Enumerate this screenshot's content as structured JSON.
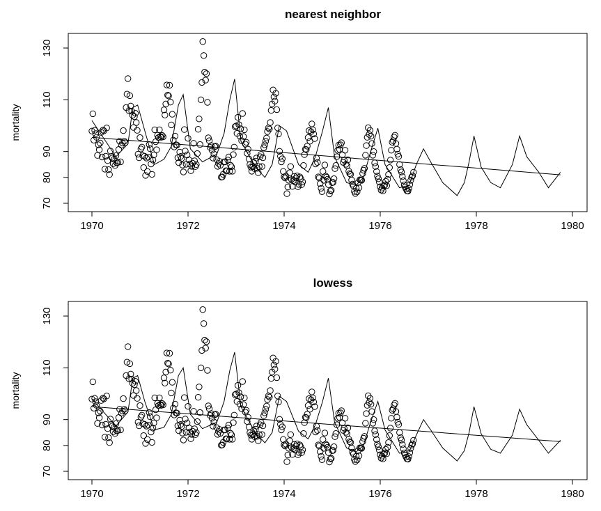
{
  "chart_data": [
    {
      "type": "scatter",
      "title": "nearest neighbor",
      "xlabel": "",
      "ylabel": "mortality",
      "xlim": [
        1970,
        1980
      ],
      "ylim": [
        70,
        130
      ],
      "xticks": [
        "1970",
        "1972",
        "1974",
        "1976",
        "1978",
        "1980"
      ],
      "yticks": [
        "70",
        "80",
        "90",
        "110",
        "130"
      ],
      "grid": false,
      "series": [
        {
          "kind": "points",
          "marker": "open-circle",
          "x_start": 1970.0,
          "x_step": 0.01923,
          "values": [
            97.9,
            104.6,
            94.4,
            98.2,
            96.9,
            95.5,
            88.5,
            92.6,
            90.7,
            93.3,
            97.4,
            87.9,
            98.3,
            98.0,
            83.2,
            88.2,
            99.1,
            86.5,
            83.0,
            81.1,
            90.2,
            88.1,
            87.5,
            85.3,
            87.0,
            84.6,
            88.4,
            85.6,
            85.8,
            90.8,
            94.0,
            86.0,
            92.5,
            93.3,
            98.1,
            94.0,
            93.4,
            107.0,
            112.2,
            118.2,
            105.8,
            111.6,
            107.6,
            105.6,
            104.0,
            99.3,
            103.5,
            104.8,
            101.2,
            98.2,
            89.0,
            87.6,
            95.4,
            91.0,
            91.7,
            88.4,
            83.8,
            88.2,
            80.8,
            87.5,
            82.3,
            87.8,
            92.7,
            91.1,
            85.2,
            81.2,
            86.7,
            88.7,
            98.4,
            93.8,
            90.7,
            96.3,
            95.4,
            98.4,
            95.8,
            95.5,
            96.2,
            95.7,
            106.1,
            104.1,
            108.4,
            115.7,
            111.8,
            111.5,
            115.6,
            109.1,
            100.3,
            104.4,
            94.4,
            91.8,
            96.0,
            92.6,
            92.5,
            87.6,
            85.7,
            89.8,
            88.1,
            87.3,
            84.8,
            82.1,
            98.5,
            90.2,
            85.1,
            88.7,
            95.1,
            86.8,
            85.2,
            82.6,
            84.3,
            85.5,
            93.2,
            86.4,
            84.2,
            85.0,
            89.2,
            98.6,
            102.6,
            92.7,
            110.0,
            116.7,
            132.5,
            127.1,
            120.7,
            117.6,
            120.1,
            109.0,
            95.3,
            94.2,
            91.6,
            92.3,
            90.5,
            87.5,
            89.1,
            91.9,
            92.1,
            86.9,
            84.3,
            85.4,
            86.2,
            84.7,
            80.1,
            80.2,
            81.2,
            86.0,
            86.0,
            82.6,
            82.5,
            86.7,
            87.9,
            82.4,
            84.7,
            84.1,
            82.4,
            88.8,
            91.7,
            99.6,
            99.9,
            97.0,
            103.2,
            100.4,
            96.0,
            98.8,
            94.2,
            104.7,
            95.8,
            98.4,
            92.9,
            93.6,
            89.3,
            90.9,
            87.1,
            85.0,
            84.0,
            82.4,
            84.1,
            85.8,
            83.4,
            86.3,
            87.5,
            83.5,
            81.8,
            84.2,
            88.0,
            88.9,
            84.2,
            87.6,
            91.5,
            92.6,
            94.0,
            95.2,
            97.7,
            99.1,
            98.7,
            101.2,
            105.9,
            108.4,
            113.8,
            111.1,
            109.5,
            112.5,
            106.2,
            99.1,
            96.8,
            90.1,
            88.2,
            86.0,
            87.2,
            82.3,
            80.2,
            79.8,
            80.5,
            73.7,
            76.3,
            78.9,
            81.8,
            84.2,
            79.2,
            76.5,
            78.8,
            80.4,
            78.2,
            79.8,
            80.6,
            76.4,
            77.3,
            80.2,
            79.5,
            77.2,
            78.3,
            84.6,
            88.8,
            90.9,
            90.7,
            92.1,
            95.4,
            98.1,
            94.0,
            97.7,
            100.7,
            98.4,
            96.8,
            95.0,
            85.2,
            87.5,
            85.8,
            80.2,
            79.8,
            77.6,
            75.8,
            74.5,
            82.3,
            78.9,
            84.8,
            80.5,
            80.1,
            79.3,
            77.2,
            73.6,
            74.8,
            75.0,
            78.0,
            78.1,
            79.5,
            83.4,
            84.6,
            88.0,
            90.5,
            92.5,
            90.8,
            92.6,
            93.4,
            88.7,
            85.8,
            86.7,
            90.5,
            85.1,
            84.5,
            86.8,
            82.4,
            81.5,
            81.2,
            79.0,
            77.4,
            76.7,
            74.6,
            73.8,
            75.8,
            74.4,
            78.0,
            76.0,
            79.1,
            79.0,
            78.9,
            81.5,
            82.8,
            83.5,
            88.6,
            92.3,
            95.5,
            99.2,
            96.6,
            98.2,
            95.9,
            93.1,
            88.6,
            90.0,
            85.6,
            84.2,
            82.3,
            80.5,
            79.5,
            78.2,
            76.4,
            75.1,
            75.9,
            74.8,
            76.7,
            77.1,
            78.5,
            76.8,
            79.3,
            81.1,
            83.8,
            86.7,
            90.5,
            93.6,
            94.2,
            95.6,
            96.3,
            93.1,
            90.9,
            89.0,
            88.1,
            85.0,
            83.0,
            82.1,
            80.3,
            78.7,
            77.1,
            76.3,
            75.5,
            74.8,
            74.7,
            75.7,
            77.2,
            78.9,
            80.1,
            80.6,
            82.0
          ]
        },
        {
          "kind": "line",
          "name": "",
          "x": [
            1970.0,
            1970.5,
            1970.75,
            1970.85,
            1970.95,
            1971.1,
            1971.3,
            1971.5,
            1971.65,
            1971.8,
            1971.9,
            1972.05,
            1972.3,
            1972.6,
            1972.75,
            1972.87,
            1972.97,
            1973.1,
            1973.4,
            1973.6,
            1973.75,
            1973.9,
            1974.05,
            1974.3,
            1974.5,
            1974.65,
            1974.8,
            1974.92,
            1975.05,
            1975.3,
            1975.5,
            1975.65,
            1975.8,
            1975.95,
            1976.1,
            1976.4,
            1976.6,
            1976.75,
            1976.9,
            1977.05,
            1977.3,
            1977.6,
            1977.75,
            1977.85,
            1977.95,
            1978.1,
            1978.3,
            1978.5,
            1978.75,
            1978.9,
            1979.05,
            1979.3,
            1979.5,
            1979.75
          ],
          "y": [
            102.0,
            88.0,
            93.0,
            107.0,
            108.0,
            98.0,
            85.0,
            87.0,
            92.0,
            108.0,
            112.0,
            91.0,
            86.0,
            89.0,
            97.0,
            110.0,
            118.0,
            94.0,
            84.0,
            80.0,
            85.0,
            100.0,
            98.0,
            85.0,
            82.0,
            88.0,
            98.0,
            107.0,
            88.0,
            78.0,
            77.0,
            80.0,
            90.0,
            99.0,
            85.0,
            76.0,
            77.0,
            85.0,
            91.0,
            86.0,
            78.0,
            73.0,
            78.0,
            86.0,
            96.0,
            84.0,
            78.0,
            76.0,
            85.0,
            96.0,
            88.0,
            82.0,
            76.0,
            82.0
          ]
        },
        {
          "kind": "trend",
          "x": [
            1970.0,
            1979.75
          ],
          "y": [
            95.5,
            81.0
          ]
        }
      ]
    },
    {
      "type": "scatter",
      "title": "lowess",
      "xlabel": "",
      "ylabel": "mortality",
      "xlim": [
        1970,
        1980
      ],
      "ylim": [
        70,
        130
      ],
      "xticks": [
        "1970",
        "1972",
        "1974",
        "1976",
        "1978",
        "1980"
      ],
      "yticks": [
        "70",
        "80",
        "90",
        "110",
        "130"
      ],
      "grid": false,
      "series": [
        {
          "kind": "points",
          "marker": "open-circle",
          "x_start": 1970.0,
          "x_step": 0.01923,
          "values": [
            97.9,
            104.6,
            94.4,
            98.2,
            96.9,
            95.5,
            88.5,
            92.6,
            90.7,
            93.3,
            97.4,
            87.9,
            98.3,
            98.0,
            83.2,
            88.2,
            99.1,
            86.5,
            83.0,
            81.1,
            90.2,
            88.1,
            87.5,
            85.3,
            87.0,
            84.6,
            88.4,
            85.6,
            85.8,
            90.8,
            94.0,
            86.0,
            92.5,
            93.3,
            98.1,
            94.0,
            93.4,
            107.0,
            112.2,
            118.2,
            105.8,
            111.6,
            107.6,
            105.6,
            104.0,
            99.3,
            103.5,
            104.8,
            101.2,
            98.2,
            89.0,
            87.6,
            95.4,
            91.0,
            91.7,
            88.4,
            83.8,
            88.2,
            80.8,
            87.5,
            82.3,
            87.8,
            92.7,
            91.1,
            85.2,
            81.2,
            86.7,
            88.7,
            98.4,
            93.8,
            90.7,
            96.3,
            95.4,
            98.4,
            95.8,
            95.5,
            96.2,
            95.7,
            106.1,
            104.1,
            108.4,
            115.7,
            111.8,
            111.5,
            115.6,
            109.1,
            100.3,
            104.4,
            94.4,
            91.8,
            96.0,
            92.6,
            92.5,
            87.6,
            85.7,
            89.8,
            88.1,
            87.3,
            84.8,
            82.1,
            98.5,
            90.2,
            85.1,
            88.7,
            95.1,
            86.8,
            85.2,
            82.6,
            84.3,
            85.5,
            93.2,
            86.4,
            84.2,
            85.0,
            89.2,
            98.6,
            102.6,
            92.7,
            110.0,
            116.7,
            132.5,
            127.1,
            120.7,
            117.6,
            120.1,
            109.0,
            95.3,
            94.2,
            91.6,
            92.3,
            90.5,
            87.5,
            89.1,
            91.9,
            92.1,
            86.9,
            84.3,
            85.4,
            86.2,
            84.7,
            80.1,
            80.2,
            81.2,
            86.0,
            86.0,
            82.6,
            82.5,
            86.7,
            87.9,
            82.4,
            84.7,
            84.1,
            82.4,
            88.8,
            91.7,
            99.6,
            99.9,
            97.0,
            103.2,
            100.4,
            96.0,
            98.8,
            94.2,
            104.7,
            95.8,
            98.4,
            92.9,
            93.6,
            89.3,
            90.9,
            87.1,
            85.0,
            84.0,
            82.4,
            84.1,
            85.8,
            83.4,
            86.3,
            87.5,
            83.5,
            81.8,
            84.2,
            88.0,
            88.9,
            84.2,
            87.6,
            91.5,
            92.6,
            94.0,
            95.2,
            97.7,
            99.1,
            98.7,
            101.2,
            105.9,
            108.4,
            113.8,
            111.1,
            109.5,
            112.5,
            106.2,
            99.1,
            96.8,
            90.1,
            88.2,
            86.0,
            87.2,
            82.3,
            80.2,
            79.8,
            80.5,
            73.7,
            76.3,
            78.9,
            81.8,
            84.2,
            79.2,
            76.5,
            78.8,
            80.4,
            78.2,
            79.8,
            80.6,
            76.4,
            77.3,
            80.2,
            79.5,
            77.2,
            78.3,
            84.6,
            88.8,
            90.9,
            90.7,
            92.1,
            95.4,
            98.1,
            94.0,
            97.7,
            100.7,
            98.4,
            96.8,
            95.0,
            85.2,
            87.5,
            85.8,
            80.2,
            79.8,
            77.6,
            75.8,
            74.5,
            82.3,
            78.9,
            84.8,
            80.5,
            80.1,
            79.3,
            77.2,
            73.6,
            74.8,
            75.0,
            78.0,
            78.1,
            79.5,
            83.4,
            84.6,
            88.0,
            90.5,
            92.5,
            90.8,
            92.6,
            93.4,
            88.7,
            85.8,
            86.7,
            90.5,
            85.1,
            84.5,
            86.8,
            82.4,
            81.5,
            81.2,
            79.0,
            77.4,
            76.7,
            74.6,
            73.8,
            75.8,
            74.4,
            78.0,
            76.0,
            79.1,
            79.0,
            78.9,
            81.5,
            82.8,
            83.5,
            88.6,
            92.3,
            95.5,
            99.2,
            96.6,
            98.2,
            95.9,
            93.1,
            88.6,
            90.0,
            85.6,
            84.2,
            82.3,
            80.5,
            79.5,
            78.2,
            76.4,
            75.1,
            75.9,
            74.8,
            76.7,
            77.1,
            78.5,
            76.8,
            79.3,
            81.1,
            83.8,
            86.7,
            90.5,
            93.6,
            94.2,
            95.6,
            96.3,
            93.1,
            90.9,
            89.0,
            88.1,
            85.0,
            83.0,
            82.1,
            80.3,
            78.7,
            77.1,
            76.3,
            75.5,
            74.8,
            74.7,
            75.7,
            77.2,
            78.9,
            80.1,
            80.6,
            82.0
          ]
        },
        {
          "kind": "line",
          "name": "",
          "x": [
            1970.0,
            1970.5,
            1970.75,
            1970.85,
            1970.95,
            1971.1,
            1971.3,
            1971.5,
            1971.65,
            1971.8,
            1971.9,
            1972.05,
            1972.3,
            1972.6,
            1972.75,
            1972.87,
            1972.97,
            1973.1,
            1973.4,
            1973.6,
            1973.75,
            1973.9,
            1974.05,
            1974.3,
            1974.5,
            1974.65,
            1974.8,
            1974.92,
            1975.05,
            1975.3,
            1975.5,
            1975.65,
            1975.8,
            1975.95,
            1976.1,
            1976.4,
            1976.6,
            1976.75,
            1976.9,
            1977.05,
            1977.3,
            1977.6,
            1977.75,
            1977.85,
            1977.95,
            1978.1,
            1978.3,
            1978.5,
            1978.75,
            1978.9,
            1979.05,
            1979.3,
            1979.5,
            1979.75
          ],
          "y": [
            98.0,
            87.5,
            93.0,
            106.0,
            107.0,
            97.0,
            86.0,
            87.0,
            92.0,
            107.0,
            110.0,
            92.0,
            86.5,
            89.0,
            97.0,
            109.0,
            116.0,
            95.0,
            85.0,
            81.0,
            85.0,
            99.0,
            97.0,
            85.5,
            82.5,
            88.0,
            97.0,
            106.0,
            89.0,
            79.0,
            77.5,
            80.0,
            89.0,
            97.0,
            86.0,
            77.0,
            77.5,
            84.0,
            90.0,
            86.0,
            79.0,
            74.0,
            78.0,
            85.0,
            95.0,
            84.5,
            78.5,
            77.0,
            84.0,
            94.0,
            88.0,
            82.0,
            77.0,
            82.0
          ]
        },
        {
          "kind": "trend",
          "x": [
            1970.0,
            1979.75
          ],
          "y": [
            95.0,
            81.5
          ]
        }
      ]
    }
  ]
}
